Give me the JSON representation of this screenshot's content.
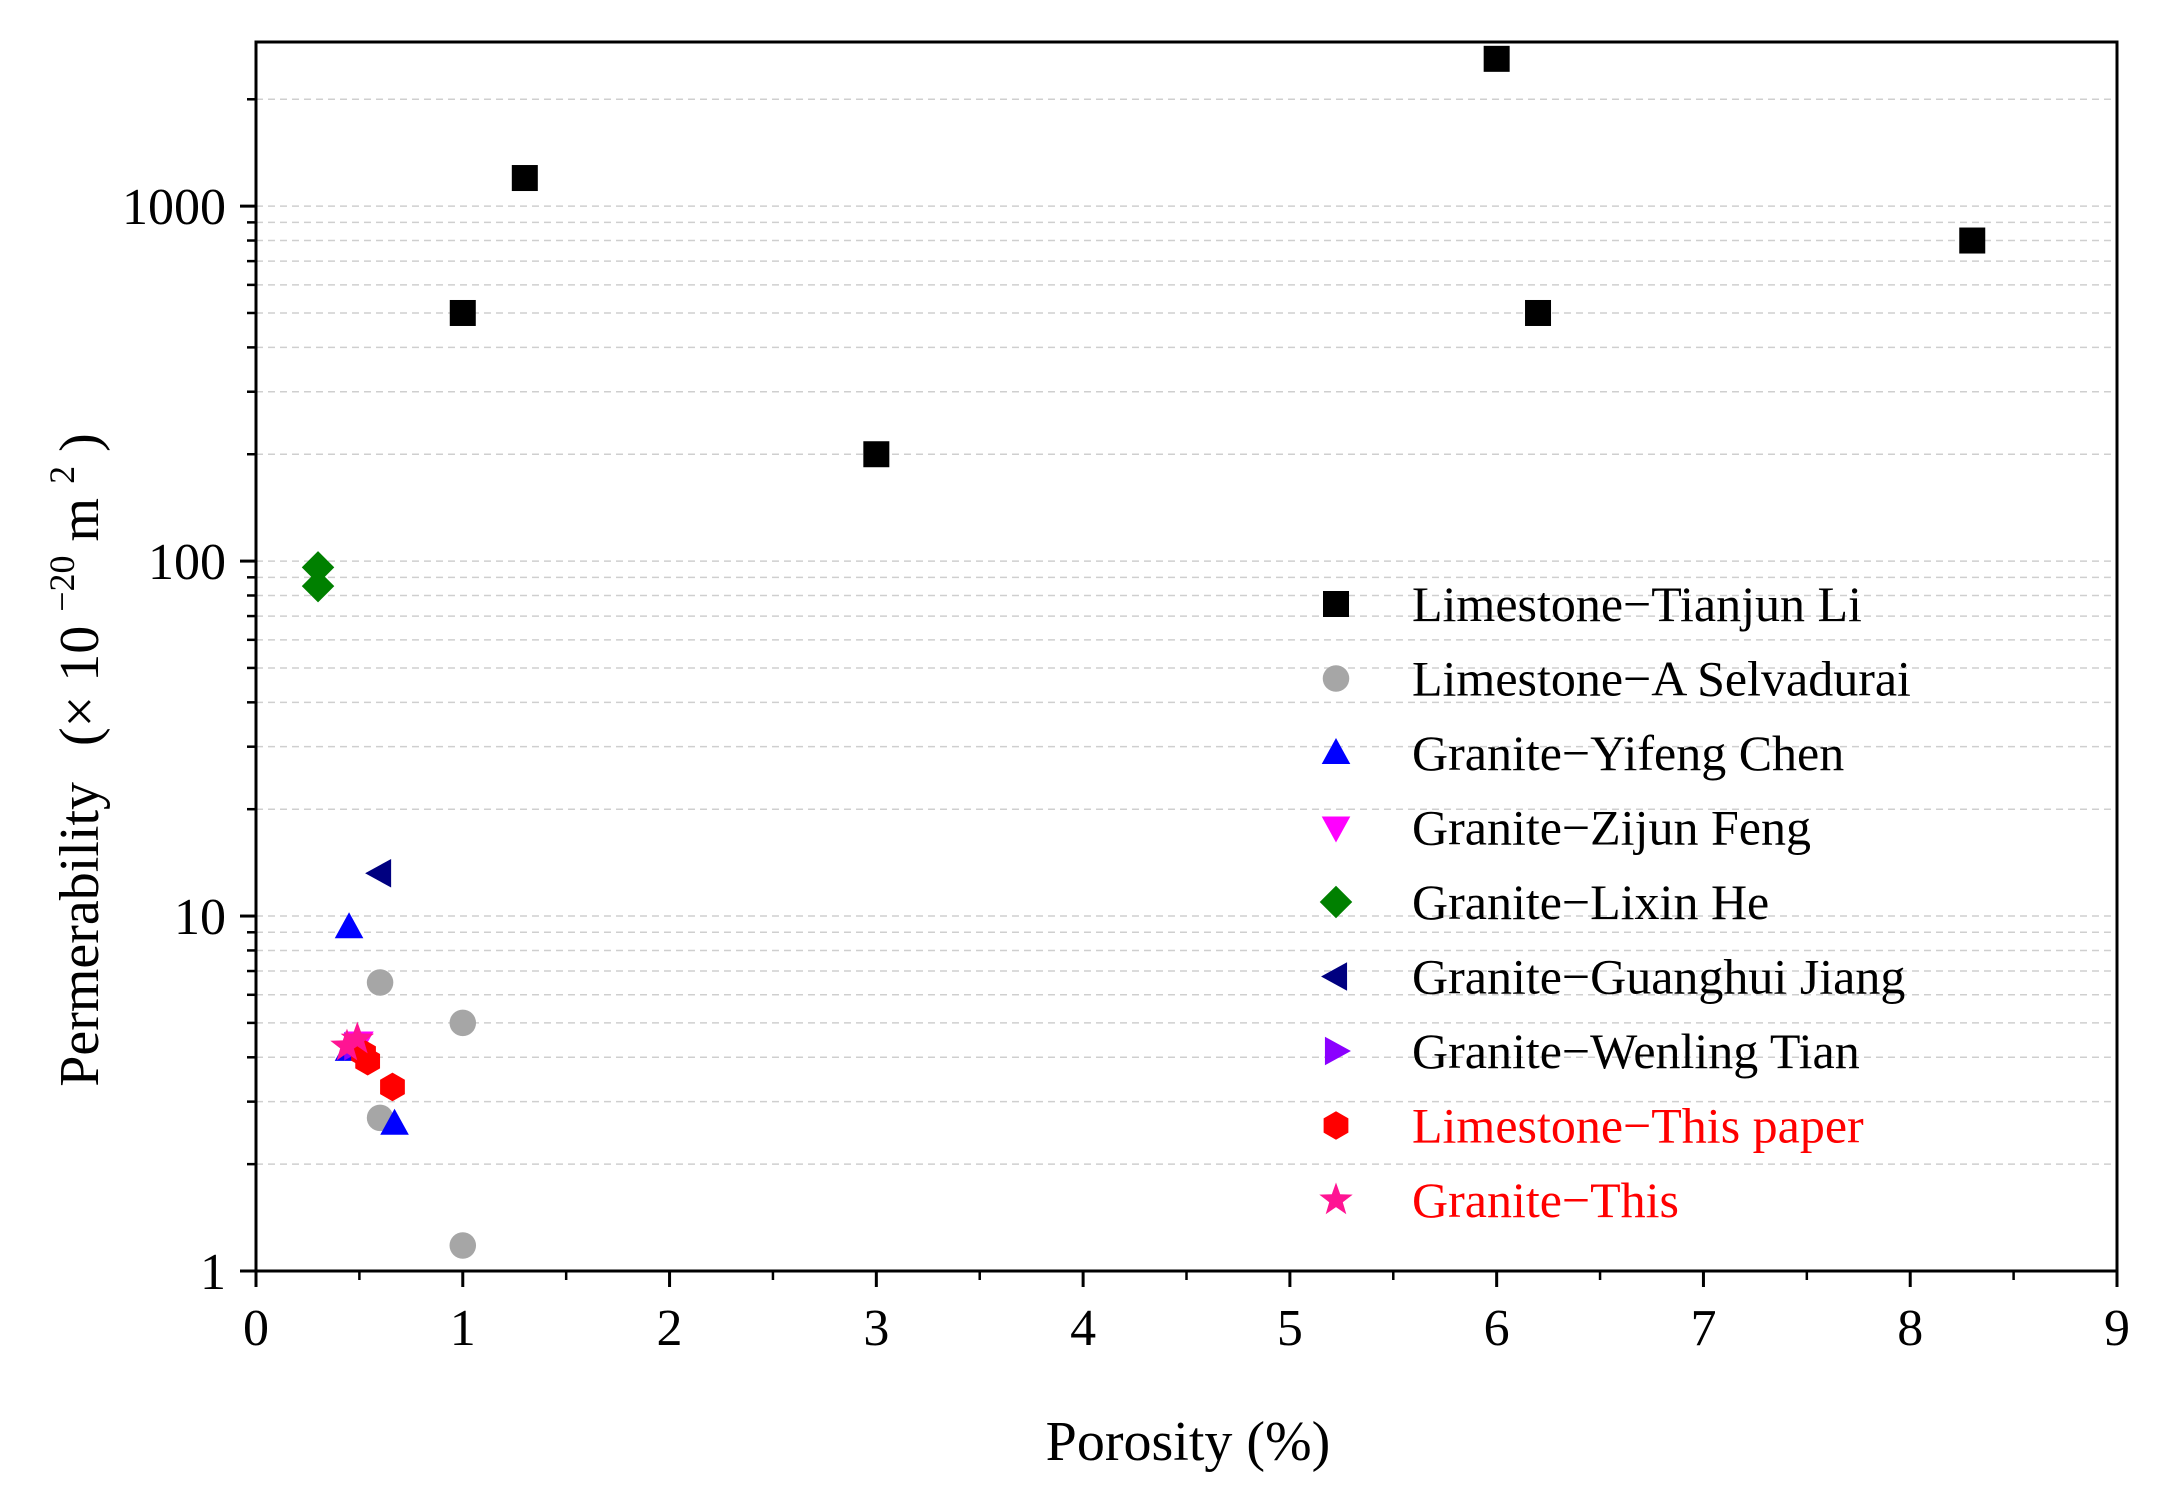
{
  "chart_data": {
    "type": "scatter",
    "xlabel": "Porosity (%)",
    "ylabel": {
      "main": "Permerability",
      "unit_prefix": "(× 10",
      "unit_exponent": "−20",
      "unit_base": "m",
      "unit_power": "2",
      "unit_suffix": ")"
    },
    "xlim": [
      0,
      9
    ],
    "ylim": [
      1,
      2900
    ],
    "yscale": "log",
    "x_ticks": [
      0,
      1,
      2,
      3,
      4,
      5,
      6,
      7,
      8,
      9
    ],
    "x_tick_labels": [
      "0",
      "1",
      "2",
      "3",
      "4",
      "5",
      "6",
      "7",
      "8",
      "9"
    ],
    "y_ticks": [
      1,
      10,
      100,
      1000
    ],
    "y_tick_labels": [
      "1",
      "10",
      "100",
      "1000"
    ],
    "grid": true,
    "legend_position": "right",
    "series": [
      {
        "name": "Limestone−Tianjun Li",
        "marker": "square",
        "color": "#000000",
        "label_color": "#000000",
        "points": [
          [
            1.0,
            500
          ],
          [
            1.3,
            1200
          ],
          [
            3.0,
            200
          ],
          [
            6.0,
            2600
          ],
          [
            6.2,
            500
          ],
          [
            8.3,
            800
          ]
        ]
      },
      {
        "name": "Limestone−A Selvadurai",
        "marker": "circle",
        "color": "#a6a6a6",
        "label_color": "#000000",
        "points": [
          [
            0.6,
            6.5
          ],
          [
            1.0,
            5.0
          ],
          [
            0.6,
            2.7
          ],
          [
            1.0,
            1.18
          ]
        ]
      },
      {
        "name": "Granite−Yifeng Chen",
        "marker": "triangle-up",
        "color": "#0000ff",
        "label_color": "#000000",
        "points": [
          [
            0.45,
            9.3
          ],
          [
            0.45,
            4.2
          ],
          [
            0.67,
            2.6
          ]
        ]
      },
      {
        "name": "Granite−Zijun Feng",
        "marker": "triangle-down",
        "color": "#ff00ff",
        "label_color": "#000000",
        "points": [
          [
            0.5,
            4.4
          ]
        ]
      },
      {
        "name": "Granite−Lixin He",
        "marker": "diamond",
        "color": "#008000",
        "label_color": "#000000",
        "points": [
          [
            0.3,
            96
          ],
          [
            0.3,
            85
          ]
        ]
      },
      {
        "name": "Granite−Guanghui Jiang",
        "marker": "triangle-left",
        "color": "#000080",
        "label_color": "#000000",
        "points": [
          [
            0.6,
            13.2
          ]
        ]
      },
      {
        "name": "Granite−Wenling Tian",
        "marker": "triangle-right",
        "color": "#8b00ff",
        "label_color": "#000000",
        "points": [
          [
            0.48,
            4.3
          ]
        ]
      },
      {
        "name": "Limestone−This paper",
        "marker": "hexagon",
        "color": "#ff0000",
        "label_color": "#ff0000",
        "points": [
          [
            0.52,
            4.1
          ],
          [
            0.54,
            3.9
          ],
          [
            0.66,
            3.3
          ]
        ]
      },
      {
        "name": "Granite−This",
        "marker": "star",
        "color": "#ff1493",
        "label_color": "#ff0000",
        "points": [
          [
            0.49,
            4.5
          ],
          [
            0.44,
            4.3
          ]
        ]
      }
    ]
  }
}
